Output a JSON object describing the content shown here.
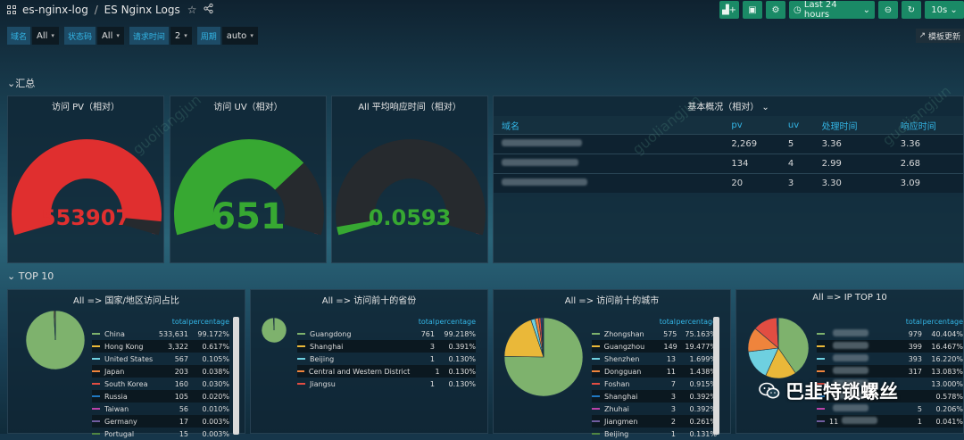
{
  "header": {
    "folder": "es-nginx-log",
    "separator": "/",
    "dashboard": "ES Nginx Logs",
    "time_range": "Last 24 hours",
    "refresh": "10s"
  },
  "variables": [
    {
      "label": "域名",
      "value": "All"
    },
    {
      "label": "状态码",
      "value": "All"
    },
    {
      "label": "请求时间",
      "value": "2"
    },
    {
      "label": "周期",
      "value": "auto"
    }
  ],
  "model_button": "模板更新",
  "rows": {
    "summary": "汇总",
    "top10": "TOP 10"
  },
  "gauges": [
    {
      "title": "访问 PV（相对）",
      "value": "553907",
      "color": "#e02f2f",
      "fill": 0.95
    },
    {
      "title": "访问 UV（相对）",
      "value": "651",
      "color": "#37a832",
      "fill": 0.72
    },
    {
      "title": "All 平均响应时间（相对）",
      "value": "0.0593",
      "color": "#37a832",
      "fill": 0.03
    }
  ],
  "overview": {
    "title": "基本概况（相对）",
    "headers": [
      "域名",
      "pv",
      "uv",
      "处理时间",
      "响应时间"
    ],
    "rows": [
      [
        "",
        "2,269",
        "5",
        "3.36",
        "3.36"
      ],
      [
        "",
        "134",
        "4",
        "2.99",
        "2.68"
      ],
      [
        "",
        "20",
        "3",
        "3.30",
        "3.09"
      ]
    ]
  },
  "top_panels": [
    {
      "title": "All => 国家/地区访问占比",
      "col_total": "total",
      "col_pct": "percentage",
      "items": [
        {
          "name": "China",
          "total": "533,631",
          "pct": "99.172%",
          "color": "#7eb26d"
        },
        {
          "name": "Hong Kong",
          "total": "3,322",
          "pct": "0.617%",
          "color": "#eab839"
        },
        {
          "name": "United States",
          "total": "567",
          "pct": "0.105%",
          "color": "#6ed0e0"
        },
        {
          "name": "Japan",
          "total": "203",
          "pct": "0.038%",
          "color": "#ef843c"
        },
        {
          "name": "South Korea",
          "total": "160",
          "pct": "0.030%",
          "color": "#e24d42"
        },
        {
          "name": "Russia",
          "total": "105",
          "pct": "0.020%",
          "color": "#1f78c1"
        },
        {
          "name": "Taiwan",
          "total": "56",
          "pct": "0.010%",
          "color": "#ba43a9"
        },
        {
          "name": "Germany",
          "total": "17",
          "pct": "0.003%",
          "color": "#705da0"
        },
        {
          "name": "Portugal",
          "total": "15",
          "pct": "0.003%",
          "color": "#508642"
        }
      ]
    },
    {
      "title": "All => 访问前十的省份",
      "col_total": "total",
      "col_pct": "percentage",
      "items": [
        {
          "name": "Guangdong",
          "total": "761",
          "pct": "99.218%",
          "color": "#7eb26d"
        },
        {
          "name": "Shanghai",
          "total": "3",
          "pct": "0.391%",
          "color": "#eab839"
        },
        {
          "name": "Beijing",
          "total": "1",
          "pct": "0.130%",
          "color": "#6ed0e0"
        },
        {
          "name": "Central and Western District",
          "total": "1",
          "pct": "0.130%",
          "color": "#ef843c"
        },
        {
          "name": "Jiangsu",
          "total": "1",
          "pct": "0.130%",
          "color": "#e24d42"
        }
      ]
    },
    {
      "title": "All => 访问前十的城市",
      "col_total": "total",
      "col_pct": "percentage",
      "items": [
        {
          "name": "Zhongshan",
          "total": "575",
          "pct": "75.163%",
          "color": "#7eb26d"
        },
        {
          "name": "Guangzhou",
          "total": "149",
          "pct": "19.477%",
          "color": "#eab839"
        },
        {
          "name": "Shenzhen",
          "total": "13",
          "pct": "1.699%",
          "color": "#6ed0e0"
        },
        {
          "name": "Dongguan",
          "total": "11",
          "pct": "1.438%",
          "color": "#ef843c"
        },
        {
          "name": "Foshan",
          "total": "7",
          "pct": "0.915%",
          "color": "#e24d42"
        },
        {
          "name": "Shanghai",
          "total": "3",
          "pct": "0.392%",
          "color": "#1f78c1"
        },
        {
          "name": "Zhuhai",
          "total": "3",
          "pct": "0.392%",
          "color": "#ba43a9"
        },
        {
          "name": "Jiangmen",
          "total": "2",
          "pct": "0.261%",
          "color": "#705da0"
        },
        {
          "name": "Beijing",
          "total": "1",
          "pct": "0.131%",
          "color": "#508642"
        }
      ]
    },
    {
      "title": "All => IP TOP 10",
      "col_total": "total",
      "col_pct": "percentage",
      "items": [
        {
          "name": "",
          "total": "979",
          "pct": "40.404%",
          "color": "#7eb26d"
        },
        {
          "name": "",
          "total": "399",
          "pct": "16.467%",
          "color": "#eab839"
        },
        {
          "name": "",
          "total": "393",
          "pct": "16.220%",
          "color": "#6ed0e0"
        },
        {
          "name": "",
          "total": "317",
          "pct": "13.083%",
          "color": "#ef843c"
        },
        {
          "name": "",
          "total": "",
          "pct": "13.000%",
          "color": "#e24d42"
        },
        {
          "name": "",
          "total": "",
          "pct": "0.578%",
          "color": "#1f78c1"
        },
        {
          "name": "",
          "total": "5",
          "pct": "0.206%",
          "color": "#ba43a9"
        },
        {
          "name": "11",
          "total": "1",
          "pct": "0.041%",
          "color": "#705da0"
        }
      ]
    }
  ],
  "watermark": "guoliangjun",
  "wechat_label": "巴韭特锁螺丝"
}
